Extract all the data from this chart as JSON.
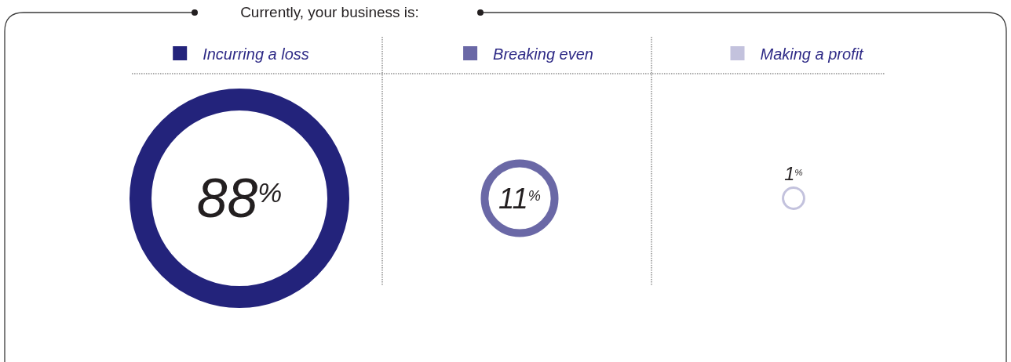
{
  "chart_data": {
    "type": "other",
    "title": "Currently, your business is:",
    "categories": [
      "Incurring a loss",
      "Breaking even",
      "Making a profit"
    ],
    "values": [
      88,
      11,
      1
    ],
    "colors": [
      "#23237b",
      "#6a68a6",
      "#c3c2dd"
    ],
    "value_labels": [
      "88$^{%}$",
      "11$^{%}$",
      "1$^{%}$"
    ]
  }
}
